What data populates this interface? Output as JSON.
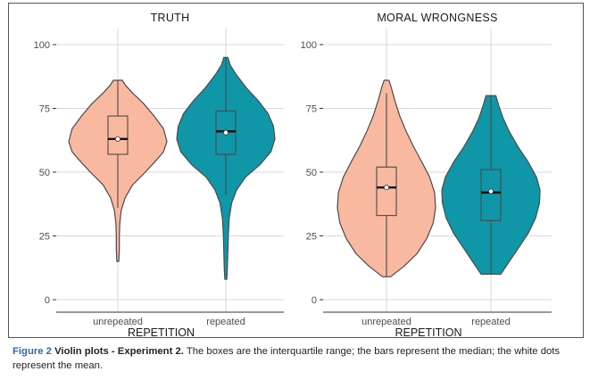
{
  "chart_data": [
    {
      "type": "violin",
      "title": "TRUTH",
      "xlabel": "REPETITION",
      "ylabel": "",
      "ylim": [
        0,
        100
      ],
      "yticks": [
        0,
        25,
        50,
        75,
        100
      ],
      "categories": [
        "unrepeated",
        "repeated"
      ],
      "grid": true,
      "series": [
        {
          "category": "unrepeated",
          "fill": "#f9b9a0",
          "violin_range": [
            15,
            86
          ],
          "density_profile": [
            [
              15,
              0.02
            ],
            [
              20,
              0.03
            ],
            [
              25,
              0.03
            ],
            [
              30,
              0.04
            ],
            [
              35,
              0.07
            ],
            [
              40,
              0.15
            ],
            [
              45,
              0.3
            ],
            [
              50,
              0.56
            ],
            [
              55,
              0.8
            ],
            [
              58,
              0.93
            ],
            [
              62,
              1.0
            ],
            [
              67,
              0.93
            ],
            [
              72,
              0.74
            ],
            [
              77,
              0.52
            ],
            [
              81,
              0.3
            ],
            [
              84,
              0.16
            ],
            [
              86,
              0.09
            ]
          ],
          "box": {
            "q1": 57,
            "median": 63,
            "q3": 72,
            "whisker_low": 36,
            "whisker_high": 86
          },
          "mean": 63
        },
        {
          "category": "repeated",
          "fill": "#0f97a8",
          "violin_range": [
            8,
            95
          ],
          "density_profile": [
            [
              8,
              0.02
            ],
            [
              12,
              0.03
            ],
            [
              18,
              0.04
            ],
            [
              25,
              0.05
            ],
            [
              32,
              0.07
            ],
            [
              38,
              0.12
            ],
            [
              43,
              0.22
            ],
            [
              48,
              0.4
            ],
            [
              53,
              0.7
            ],
            [
              58,
              0.92
            ],
            [
              63,
              1.0
            ],
            [
              68,
              0.97
            ],
            [
              73,
              0.86
            ],
            [
              78,
              0.66
            ],
            [
              83,
              0.42
            ],
            [
              88,
              0.22
            ],
            [
              92,
              0.09
            ],
            [
              95,
              0.04
            ]
          ],
          "box": {
            "q1": 57,
            "median": 66,
            "q3": 74,
            "whisker_low": 41,
            "whisker_high": 95
          },
          "mean": 65.5
        }
      ]
    },
    {
      "type": "violin",
      "title": "MORAL WRONGNESS",
      "xlabel": "REPETITION",
      "ylabel": "",
      "ylim": [
        0,
        100
      ],
      "yticks": [
        0,
        25,
        50,
        75,
        100
      ],
      "categories": [
        "unrepeated",
        "repeated"
      ],
      "grid": true,
      "series": [
        {
          "category": "unrepeated",
          "fill": "#f9b9a0",
          "violin_range": [
            9,
            86
          ],
          "density_profile": [
            [
              9,
              0.08
            ],
            [
              13,
              0.35
            ],
            [
              18,
              0.62
            ],
            [
              24,
              0.82
            ],
            [
              30,
              0.95
            ],
            [
              36,
              1.0
            ],
            [
              42,
              0.98
            ],
            [
              48,
              0.88
            ],
            [
              54,
              0.72
            ],
            [
              60,
              0.55
            ],
            [
              66,
              0.4
            ],
            [
              72,
              0.27
            ],
            [
              78,
              0.17
            ],
            [
              83,
              0.1
            ],
            [
              86,
              0.05
            ]
          ],
          "box": {
            "q1": 33,
            "median": 44,
            "q3": 52,
            "whisker_low": 9,
            "whisker_high": 81
          },
          "mean": 44
        },
        {
          "category": "repeated",
          "fill": "#0f97a8",
          "violin_range": [
            10,
            80
          ],
          "density_profile": [
            [
              10,
              0.2
            ],
            [
              14,
              0.34
            ],
            [
              20,
              0.55
            ],
            [
              26,
              0.76
            ],
            [
              32,
              0.91
            ],
            [
              38,
              0.99
            ],
            [
              43,
              1.0
            ],
            [
              48,
              0.93
            ],
            [
              54,
              0.76
            ],
            [
              60,
              0.55
            ],
            [
              66,
              0.37
            ],
            [
              71,
              0.25
            ],
            [
              76,
              0.16
            ],
            [
              80,
              0.1
            ]
          ],
          "box": {
            "q1": 31,
            "median": 42,
            "q3": 51,
            "whisker_low": 10,
            "whisker_high": 80
          },
          "mean": 42.5
        }
      ]
    }
  ],
  "caption": {
    "label": "Figure 2",
    "title": "Violin plots - Experiment 2.",
    "text": "The boxes are the interquartile range; the bars represent the median; the white dots represent the mean."
  },
  "colors": {
    "unrepeated": "#f9b9a0",
    "repeated": "#0f97a8",
    "grid": "#d9d9d9",
    "caption_label": "#2e6aa8"
  }
}
